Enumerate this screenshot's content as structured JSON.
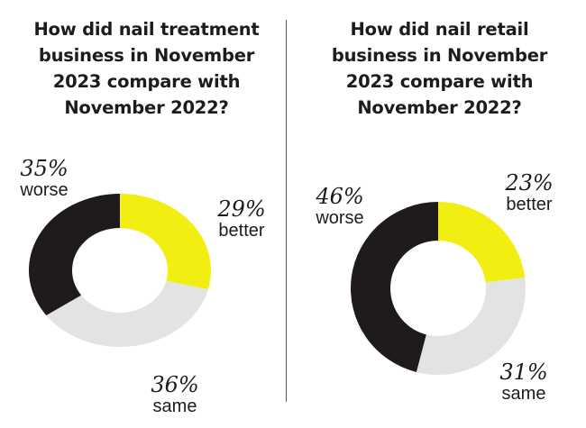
{
  "colors": {
    "better": "#f2ee12",
    "same": "#e3e3e3",
    "worse": "#1f1b1c"
  },
  "chart_data": [
    {
      "type": "pie",
      "title": "How did nail treatment\nbusiness in November\n2023 compare with\nNovember 2022?",
      "slices": [
        {
          "label": "better",
          "value": 29,
          "display": "29%"
        },
        {
          "label": "same",
          "value": 36,
          "display": "36%"
        },
        {
          "label": "worse",
          "value": 35,
          "display": "35%"
        }
      ]
    },
    {
      "type": "pie",
      "title": "How did nail retail\nbusiness in November\n2023 compare with\nNovember 2022?",
      "slices": [
        {
          "label": "better",
          "value": 23,
          "display": "23%"
        },
        {
          "label": "same",
          "value": 31,
          "display": "31%"
        },
        {
          "label": "worse",
          "value": 46,
          "display": "46%"
        }
      ]
    }
  ]
}
